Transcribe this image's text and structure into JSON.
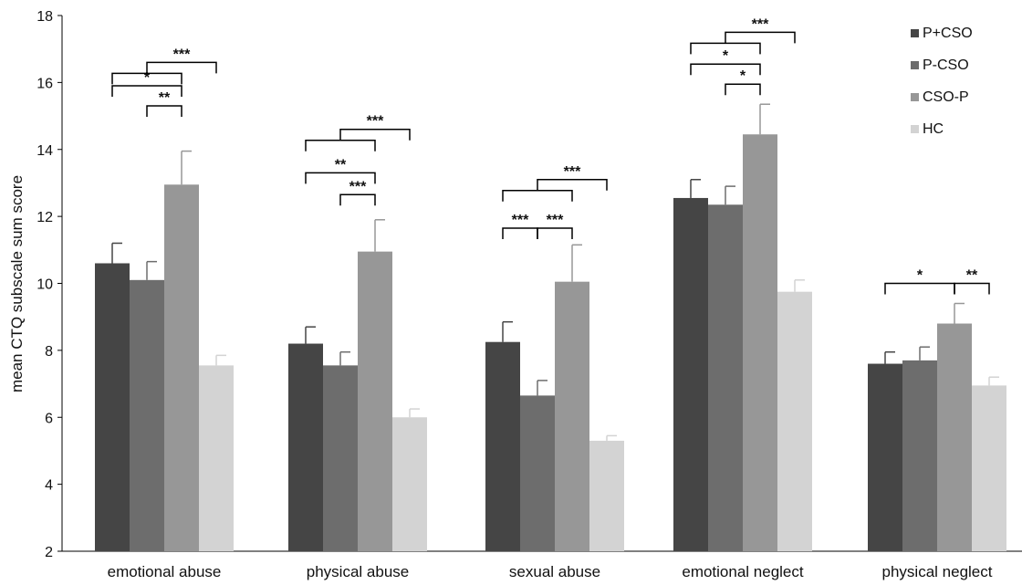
{
  "chart_data": {
    "type": "bar",
    "title": "",
    "ylabel": "mean CTQ subscale sum score",
    "xlabel": "",
    "ylim": [
      2,
      18
    ],
    "yticks": [
      2,
      4,
      6,
      8,
      10,
      12,
      14,
      16,
      18
    ],
    "grid": false,
    "legend_position": "top-right",
    "categories": [
      "emotional abuse",
      "physical abuse",
      "sexual abuse",
      "emotional neglect",
      "physical neglect"
    ],
    "series": [
      {
        "name": "P+CSO",
        "color": "#454545",
        "values": [
          10.6,
          8.2,
          8.25,
          12.55,
          7.6
        ],
        "errors": [
          0.6,
          0.5,
          0.6,
          0.55,
          0.35
        ]
      },
      {
        "name": "P-CSO",
        "color": "#6d6d6d",
        "values": [
          10.1,
          7.55,
          6.65,
          12.35,
          7.7
        ],
        "errors": [
          0.55,
          0.4,
          0.45,
          0.55,
          0.4
        ]
      },
      {
        "name": "CSO-P",
        "color": "#979797",
        "values": [
          12.95,
          10.95,
          10.05,
          14.45,
          8.8
        ],
        "errors": [
          1.0,
          0.95,
          1.1,
          0.9,
          0.6
        ]
      },
      {
        "name": "HC",
        "color": "#d3d3d3",
        "values": [
          7.55,
          6.0,
          5.3,
          9.75,
          6.95
        ],
        "errors": [
          0.3,
          0.25,
          0.15,
          0.35,
          0.25
        ]
      }
    ],
    "significance": [
      {
        "category": 0,
        "type": "simple",
        "from": 1,
        "to": 2,
        "y": 15.3,
        "label": "**"
      },
      {
        "category": 0,
        "type": "simple",
        "from": 0,
        "to": 2,
        "y": 15.9,
        "label": "*"
      },
      {
        "category": 0,
        "type": "group",
        "groupFrom": 0,
        "groupTo": 2,
        "to": 3,
        "y": 16.6,
        "label": "***"
      },
      {
        "category": 1,
        "type": "simple",
        "from": 1,
        "to": 2,
        "y": 12.65,
        "label": "***"
      },
      {
        "category": 1,
        "type": "simple",
        "from": 0,
        "to": 2,
        "y": 13.3,
        "label": "**"
      },
      {
        "category": 1,
        "type": "group",
        "groupFrom": 0,
        "groupTo": 2,
        "to": 3,
        "y": 14.6,
        "label": "***"
      },
      {
        "category": 2,
        "type": "simple",
        "from": 0,
        "to": 1,
        "y": 11.65,
        "label": "***"
      },
      {
        "category": 2,
        "type": "simple",
        "from": 1,
        "to": 2,
        "y": 11.65,
        "label": "***"
      },
      {
        "category": 2,
        "type": "group",
        "groupFrom": 0,
        "groupTo": 2,
        "to": 3,
        "y": 13.1,
        "label": "***"
      },
      {
        "category": 3,
        "type": "simple",
        "from": 1,
        "to": 2,
        "y": 15.95,
        "label": "*"
      },
      {
        "category": 3,
        "type": "simple",
        "from": 0,
        "to": 2,
        "y": 16.55,
        "label": "*"
      },
      {
        "category": 3,
        "type": "group",
        "groupFrom": 0,
        "groupTo": 2,
        "to": 3,
        "y": 17.5,
        "label": "***"
      },
      {
        "category": 4,
        "type": "simple",
        "from": 0,
        "to": 2,
        "y": 10.0,
        "label": "*"
      },
      {
        "category": 4,
        "type": "simple",
        "from": 2,
        "to": 3,
        "y": 10.0,
        "label": "**"
      }
    ]
  }
}
